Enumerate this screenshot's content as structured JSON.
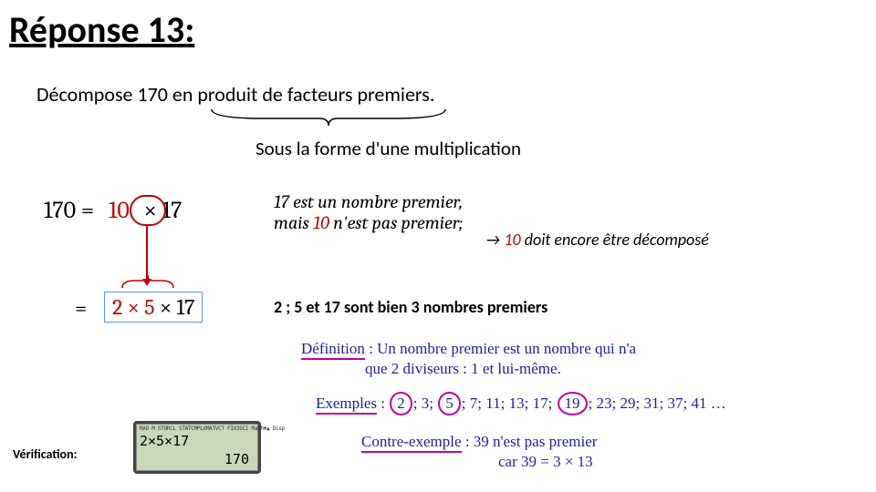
{
  "title": "Réponse 13:",
  "subtitle": "Décompose 170 en produit de facteurs premiers.",
  "hint1": "Sous la forme d'une multiplication",
  "eq1": {
    "lhs": "170 =",
    "ten": "10",
    "mid": "× 17"
  },
  "comment1_a": "17 est un nombre premier,",
  "comment1_b": "mais ",
  "comment1_ten": "10",
  "comment1_c": " n'est pas premier;",
  "decomp_arrow": "→ ",
  "decomp_ten": "10",
  "decomp_rest": " doit encore être décomposé",
  "eq2_eq": "=",
  "eq2_inner": "2 × 5 × 17",
  "note3": "2 ; 5 et 17 sont bien 3 nombres premiers",
  "verif": "Vérification:",
  "calc": {
    "header": "RAD M STORCL STATCMPLXMATVCT FIX3SCI Math▼▲ Disp",
    "line1": "2×5×17",
    "line2": "170"
  },
  "hw": {
    "def_label": "Définition",
    "def_text": ": Un nombre premier est un nombre qui n'a",
    "def_text2": "que 2 diviseurs : 1 et lui-même.",
    "ex_label": "Exemples",
    "ex_sep": " : ",
    "ex_nums": [
      "2",
      "3",
      "5",
      "7",
      "11",
      "13",
      "17",
      "19",
      "23",
      "29",
      "31",
      "37",
      "41"
    ],
    "ex_circled": [
      0,
      2,
      7
    ],
    "ce_label": "Contre-exemple",
    "ce_text": " : 39 n'est pas premier",
    "ce_text2": "car 39 = 3 × 13"
  },
  "colors": {
    "accent_red": "#c00000",
    "box_blue": "#5b9bd5",
    "ink": "#2020a0",
    "pink": "#c000a0",
    "calc_bg": "#c8d8b8"
  }
}
